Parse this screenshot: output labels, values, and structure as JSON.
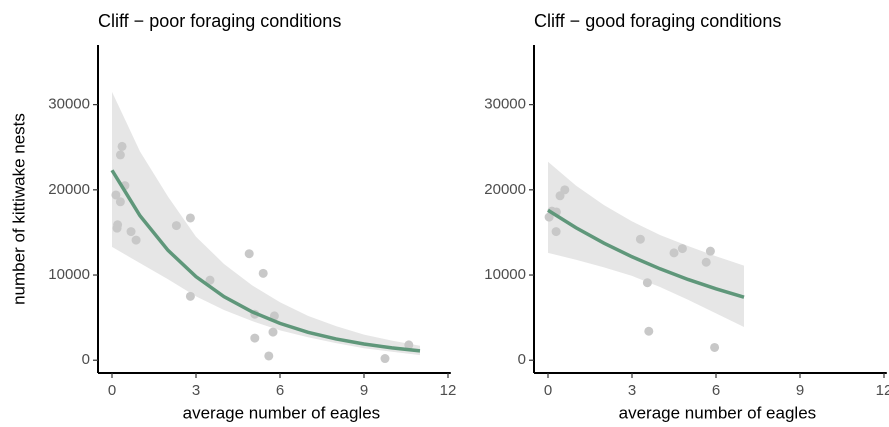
{
  "chart_data": [
    {
      "type": "scatter",
      "title": "Cliff − poor foraging conditions",
      "xlabel": "average number of eagles",
      "ylabel": "number of kittiwake nests",
      "xlim": [
        -0.5,
        12.1
      ],
      "ylim": [
        -1500,
        37000
      ],
      "xticks": [
        0,
        3,
        6,
        9,
        12
      ],
      "yticks": [
        0,
        10000,
        20000,
        30000
      ],
      "point_color": "#c8c8c8",
      "line_color": "#5f977a",
      "band_color": "#e6e6e6",
      "points": {
        "x": [
          0.14,
          0.18,
          0.2,
          0.3,
          0.36,
          0.46,
          0.3,
          0.68,
          0.86,
          2.3,
          2.8,
          2.8,
          3.5,
          4.9,
          5.1,
          5.4,
          5.75,
          5.8,
          5.6,
          9.75,
          10.6,
          5.1
        ],
        "y": [
          19400,
          15500,
          15900,
          24100,
          25100,
          20500,
          18600,
          15100,
          14100,
          15800,
          16700,
          7500,
          9400,
          12500,
          2600,
          10200,
          3300,
          5200,
          500,
          200,
          1800,
          5400
        ]
      },
      "fit": {
        "x": [
          0,
          1,
          2,
          3,
          4,
          5,
          6,
          7,
          8,
          9,
          10,
          11
        ],
        "y": [
          22300,
          16960,
          12900,
          9810,
          7460,
          5680,
          4320,
          3280,
          2500,
          1900,
          1445,
          1100
        ],
        "lower": [
          13300,
          11400,
          9500,
          7500,
          5900,
          4600,
          3500,
          2700,
          2000,
          1400,
          1000,
          600
        ],
        "upper": [
          31500,
          24500,
          19200,
          14500,
          11300,
          8800,
          6800,
          5200,
          4000,
          3000,
          2300,
          1700
        ]
      }
    },
    {
      "type": "scatter",
      "title": "Cliff  − good foraging conditions",
      "xlabel": "average number of eagles",
      "xlim": [
        -0.5,
        12.1
      ],
      "ylim": [
        -1500,
        37000
      ],
      "xticks": [
        0,
        3,
        6,
        9,
        12
      ],
      "yticks": [
        0,
        10000,
        20000,
        30000
      ],
      "point_color": "#c8c8c8",
      "line_color": "#5f977a",
      "band_color": "#e6e6e6",
      "points": {
        "x": [
          0.04,
          0.14,
          0.29,
          0.43,
          0.6,
          0.3,
          3.3,
          3.55,
          3.6,
          4.5,
          4.8,
          5.65,
          5.8,
          5.95
        ],
        "y": [
          16800,
          17500,
          15100,
          19300,
          20000,
          17400,
          14200,
          9100,
          3400,
          12600,
          13100,
          11500,
          12800,
          1500
        ]
      },
      "fit": {
        "x": [
          0,
          1,
          2,
          3,
          4,
          5,
          6,
          7
        ],
        "y": [
          17600,
          15550,
          13740,
          12140,
          10730,
          9480,
          8380,
          7400
        ],
        "lower": [
          12600,
          11800,
          10900,
          9900,
          8600,
          7100,
          5500,
          3900
        ],
        "upper": [
          23300,
          20500,
          18200,
          16300,
          14700,
          13400,
          12200,
          11100
        ]
      }
    }
  ]
}
